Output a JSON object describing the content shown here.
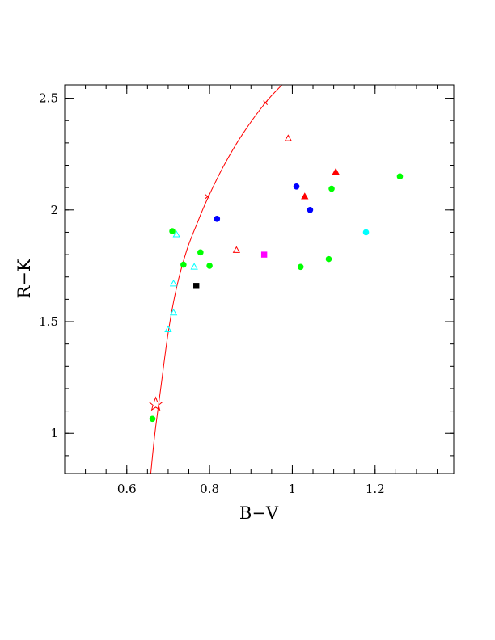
{
  "chart_data": {
    "type": "scatter",
    "xlabel": "B−V",
    "ylabel": "R−K",
    "xlim": [
      0.45,
      1.39
    ],
    "ylim": [
      0.82,
      2.56
    ],
    "x_ticks": [
      {
        "value": 0.6,
        "label": "0.6"
      },
      {
        "value": 0.8,
        "label": "0.8"
      },
      {
        "value": 1.0,
        "label": "1"
      },
      {
        "value": 1.2,
        "label": "1.2"
      }
    ],
    "y_ticks": [
      {
        "value": 1.0,
        "label": "1"
      },
      {
        "value": 1.5,
        "label": "1.5"
      },
      {
        "value": 2.0,
        "label": "2"
      },
      {
        "value": 2.5,
        "label": "2.5"
      }
    ],
    "x_minor_step": 0.05,
    "y_minor_step": 0.1,
    "grid": false,
    "legend": "none",
    "curve": {
      "color": "#ff0000",
      "points": [
        [
          0.658,
          0.82
        ],
        [
          0.668,
          1.0
        ],
        [
          0.682,
          1.2
        ],
        [
          0.7,
          1.45
        ],
        [
          0.72,
          1.65
        ],
        [
          0.745,
          1.82
        ],
        [
          0.77,
          1.94
        ],
        [
          0.795,
          2.05
        ],
        [
          0.835,
          2.2
        ],
        [
          0.88,
          2.34
        ],
        [
          0.935,
          2.48
        ],
        [
          0.975,
          2.56
        ]
      ]
    },
    "markers": [
      {
        "shape": "star",
        "color": "#ff0000",
        "filled": false,
        "x": 0.67,
        "y": 1.13
      },
      {
        "shape": "cross",
        "color": "#ff0000",
        "filled": false,
        "x": 0.795,
        "y": 2.06
      },
      {
        "shape": "cross",
        "color": "#ff0000",
        "filled": false,
        "x": 0.935,
        "y": 2.48
      },
      {
        "shape": "triangle",
        "color": "#ff0000",
        "filled": false,
        "x": 0.99,
        "y": 2.32
      },
      {
        "shape": "triangle",
        "color": "#ff0000",
        "filled": false,
        "x": 0.865,
        "y": 1.82
      },
      {
        "shape": "triangle",
        "color": "#ff0000",
        "filled": true,
        "x": 1.03,
        "y": 2.06
      },
      {
        "shape": "triangle",
        "color": "#ff0000",
        "filled": true,
        "x": 1.105,
        "y": 2.17
      },
      {
        "shape": "circle",
        "color": "#00ff00",
        "filled": true,
        "x": 0.662,
        "y": 1.065
      },
      {
        "shape": "circle",
        "color": "#00ff00",
        "filled": true,
        "x": 0.71,
        "y": 1.905
      },
      {
        "shape": "circle",
        "color": "#00ff00",
        "filled": true,
        "x": 0.737,
        "y": 1.755
      },
      {
        "shape": "circle",
        "color": "#00ff00",
        "filled": true,
        "x": 0.778,
        "y": 1.81
      },
      {
        "shape": "circle",
        "color": "#00ff00",
        "filled": true,
        "x": 0.8,
        "y": 1.75
      },
      {
        "shape": "circle",
        "color": "#00ff00",
        "filled": true,
        "x": 1.02,
        "y": 1.745
      },
      {
        "shape": "circle",
        "color": "#00ff00",
        "filled": true,
        "x": 1.088,
        "y": 1.78
      },
      {
        "shape": "circle",
        "color": "#00ff00",
        "filled": true,
        "x": 1.095,
        "y": 2.095
      },
      {
        "shape": "circle",
        "color": "#00ff00",
        "filled": true,
        "x": 1.26,
        "y": 2.15
      },
      {
        "shape": "triangle",
        "color": "#00ffff",
        "filled": false,
        "x": 0.72,
        "y": 1.89
      },
      {
        "shape": "triangle",
        "color": "#00ffff",
        "filled": false,
        "x": 0.763,
        "y": 1.745
      },
      {
        "shape": "triangle",
        "color": "#00ffff",
        "filled": false,
        "x": 0.713,
        "y": 1.67
      },
      {
        "shape": "triangle",
        "color": "#00ffff",
        "filled": false,
        "x": 0.713,
        "y": 1.54
      },
      {
        "shape": "triangle",
        "color": "#00ffff",
        "filled": false,
        "x": 0.7,
        "y": 1.465
      },
      {
        "shape": "circle",
        "color": "#0000ff",
        "filled": true,
        "x": 0.818,
        "y": 1.96
      },
      {
        "shape": "circle",
        "color": "#0000ff",
        "filled": true,
        "x": 1.01,
        "y": 2.105
      },
      {
        "shape": "circle",
        "color": "#0000ff",
        "filled": true,
        "x": 1.043,
        "y": 2.0
      },
      {
        "shape": "circle",
        "color": "#00ffff",
        "filled": true,
        "x": 1.178,
        "y": 1.9
      },
      {
        "shape": "square",
        "color": "#ff00ff",
        "filled": true,
        "x": 0.932,
        "y": 1.8
      },
      {
        "shape": "square",
        "color": "#000000",
        "filled": true,
        "x": 0.768,
        "y": 1.66
      }
    ]
  }
}
